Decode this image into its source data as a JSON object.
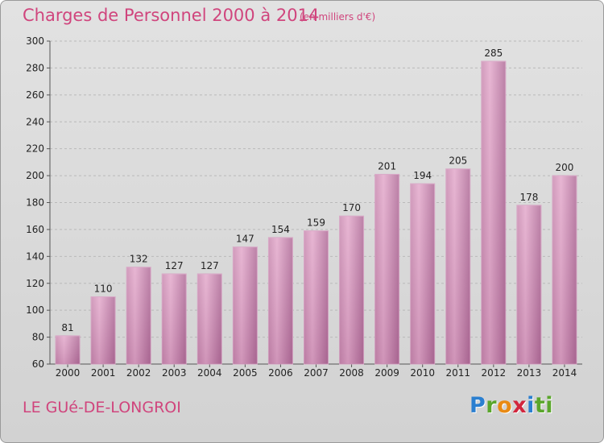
{
  "header": {
    "title": "Charges de Personnel 2000 à 2014",
    "subtitle": "(en milliers d'€)"
  },
  "footer": {
    "commune": "LE GUé-DE-LONGROI",
    "logo_letters": [
      "P",
      "r",
      "o",
      "x",
      "i",
      "ti"
    ]
  },
  "colors": {
    "title": "#d0457d",
    "bar_light": "#e3a6c8",
    "bar_dark": "#b06a98",
    "background": "#d8d8d8"
  },
  "chart_data": {
    "type": "bar",
    "categories": [
      "2000",
      "2001",
      "2002",
      "2003",
      "2004",
      "2005",
      "2006",
      "2007",
      "2008",
      "2009",
      "2010",
      "2011",
      "2012",
      "2013",
      "2014"
    ],
    "values": [
      81,
      110,
      132,
      127,
      127,
      147,
      154,
      159,
      170,
      201,
      194,
      205,
      285,
      178,
      200
    ],
    "title": "Charges de Personnel 2000 à 2014",
    "subtitle": "(en milliers d'€)",
    "ylim": [
      60,
      300
    ],
    "yticks": [
      60,
      80,
      100,
      120,
      140,
      160,
      180,
      200,
      220,
      240,
      260,
      280,
      300
    ],
    "grid": true,
    "legend": "none"
  }
}
